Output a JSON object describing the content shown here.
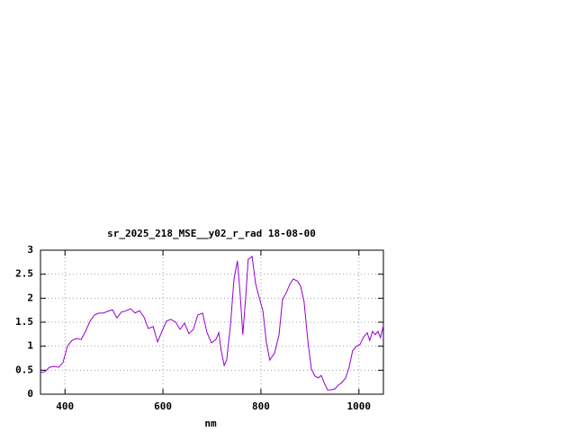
{
  "chart_data": {
    "type": "line",
    "title": "sr_2025_218_MSE__y02_r_rad 18-08-00",
    "xlabel": "nm",
    "xlim": [
      350,
      1050
    ],
    "xticks": [
      400,
      600,
      800,
      1000
    ],
    "ylim": [
      0,
      3
    ],
    "yticks": [
      0,
      0.5,
      1,
      1.5,
      2,
      2.5,
      3
    ],
    "grid": true,
    "series": [
      {
        "color": "#9400d3",
        "x": [
          350,
          359,
          368,
          378,
          387,
          396,
          405,
          414,
          423,
          433,
          442,
          451,
          460,
          469,
          478,
          488,
          497,
          506,
          515,
          525,
          534,
          543,
          552,
          561,
          570,
          580,
          589,
          598,
          607,
          616,
          626,
          635,
          644,
          653,
          662,
          671,
          681,
          690,
          699,
          708,
          714,
          719,
          725,
          730,
          738,
          745,
          752,
          758,
          763,
          769,
          774,
          782,
          789,
          796,
          804,
          811,
          818,
          828,
          837,
          844,
          852,
          859,
          866,
          874,
          881,
          888,
          896,
          903,
          910,
          917,
          923,
          929,
          936,
          943,
          951,
          958,
          965,
          973,
          980,
          987,
          995,
          1002,
          1009,
          1017,
          1022,
          1028,
          1033,
          1039,
          1044,
          1050
        ],
        "values": [
          0.45,
          0.47,
          0.56,
          0.58,
          0.56,
          0.66,
          1.0,
          1.12,
          1.16,
          1.14,
          1.31,
          1.52,
          1.65,
          1.69,
          1.69,
          1.73,
          1.76,
          1.59,
          1.71,
          1.74,
          1.78,
          1.69,
          1.74,
          1.61,
          1.37,
          1.41,
          1.09,
          1.31,
          1.52,
          1.56,
          1.5,
          1.35,
          1.48,
          1.26,
          1.35,
          1.65,
          1.69,
          1.28,
          1.07,
          1.14,
          1.28,
          0.9,
          0.6,
          0.71,
          1.46,
          2.4,
          2.78,
          2.03,
          1.24,
          2.03,
          2.81,
          2.87,
          2.31,
          2.03,
          1.74,
          1.09,
          0.71,
          0.86,
          1.24,
          1.97,
          2.12,
          2.29,
          2.4,
          2.36,
          2.25,
          1.93,
          1.09,
          0.53,
          0.38,
          0.34,
          0.39,
          0.24,
          0.09,
          0.09,
          0.11,
          0.19,
          0.24,
          0.34,
          0.56,
          0.9,
          1.0,
          1.03,
          1.18,
          1.28,
          1.12,
          1.31,
          1.24,
          1.31,
          1.18,
          1.43
        ]
      }
    ]
  }
}
